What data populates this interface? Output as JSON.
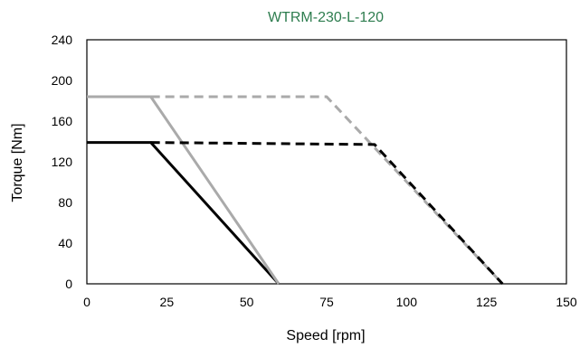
{
  "chart_data": {
    "type": "line",
    "title": "WTRM-230-L-120",
    "title_color": "#2e7d4f",
    "xlabel": "Speed [rpm]",
    "ylabel": "Torque [Nm]",
    "xlim": [
      0,
      150
    ],
    "ylim": [
      0,
      240
    ],
    "xticks": [
      0,
      25,
      50,
      75,
      100,
      125,
      150
    ],
    "yticks": [
      0,
      40,
      80,
      120,
      160,
      200,
      240
    ],
    "grid": false,
    "series": [
      {
        "style": "solid",
        "color": "#000000",
        "x": [
          0,
          20,
          60
        ],
        "y": [
          139,
          139,
          0
        ]
      },
      {
        "style": "solid",
        "color": "#aaaaaa",
        "x": [
          0,
          20,
          60
        ],
        "y": [
          184,
          184,
          0
        ]
      },
      {
        "style": "dashed",
        "color": "#aaaaaa",
        "x": [
          20,
          75,
          130
        ],
        "y": [
          184,
          184,
          0
        ]
      },
      {
        "style": "dashed",
        "color": "#000000",
        "x": [
          20,
          90,
          130
        ],
        "y": [
          139,
          137,
          0
        ]
      }
    ]
  }
}
